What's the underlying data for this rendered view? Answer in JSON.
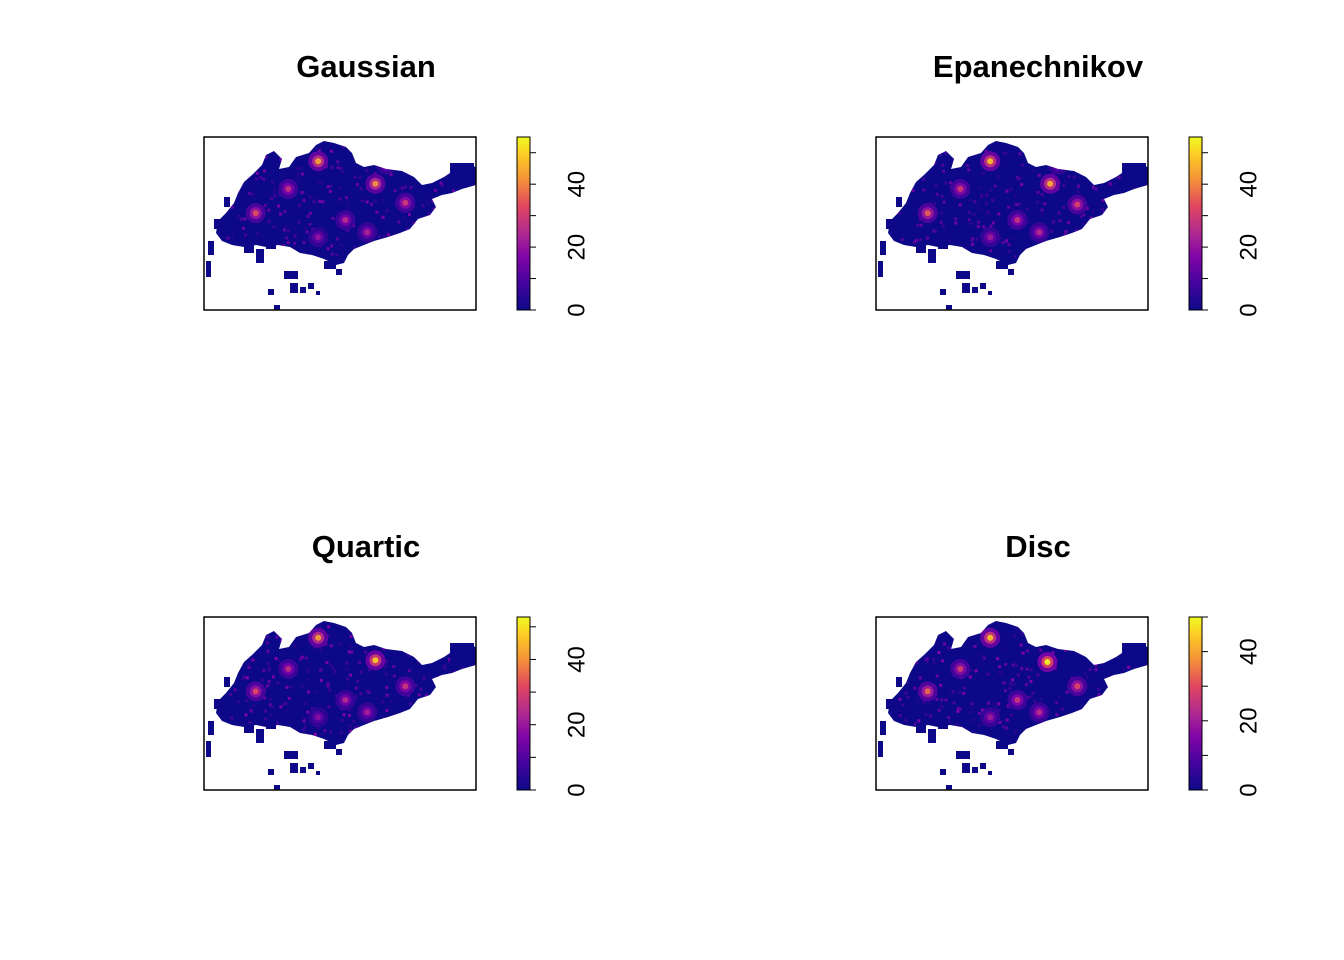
{
  "chart_data": [
    {
      "type": "heatmap",
      "title": "Gaussian",
      "colorbar": {
        "range": [
          0,
          55
        ],
        "ticks": [
          0,
          20,
          40
        ],
        "palette": "plasma",
        "position": "right"
      },
      "axes": "none",
      "grid": false,
      "hotspots": [
        {
          "x": 0.42,
          "y": 0.14,
          "value": 45
        },
        {
          "x": 0.63,
          "y": 0.27,
          "value": 42
        },
        {
          "x": 0.31,
          "y": 0.3,
          "value": 28
        },
        {
          "x": 0.19,
          "y": 0.44,
          "value": 34
        },
        {
          "x": 0.74,
          "y": 0.38,
          "value": 30
        },
        {
          "x": 0.52,
          "y": 0.48,
          "value": 26
        },
        {
          "x": 0.6,
          "y": 0.55,
          "value": 24
        },
        {
          "x": 0.42,
          "y": 0.58,
          "value": 20
        },
        {
          "x": 0.67,
          "y": 0.16,
          "value": 22
        }
      ]
    },
    {
      "type": "heatmap",
      "title": "Epanechnikov",
      "colorbar": {
        "range": [
          0,
          55
        ],
        "ticks": [
          0,
          20,
          40
        ],
        "palette": "plasma",
        "position": "right"
      },
      "axes": "none",
      "grid": false,
      "hotspots": [
        {
          "x": 0.42,
          "y": 0.14,
          "value": 48
        },
        {
          "x": 0.64,
          "y": 0.27,
          "value": 46
        },
        {
          "x": 0.31,
          "y": 0.3,
          "value": 30
        },
        {
          "x": 0.19,
          "y": 0.44,
          "value": 36
        },
        {
          "x": 0.74,
          "y": 0.39,
          "value": 32
        },
        {
          "x": 0.52,
          "y": 0.48,
          "value": 28
        },
        {
          "x": 0.6,
          "y": 0.55,
          "value": 26
        },
        {
          "x": 0.42,
          "y": 0.58,
          "value": 22
        },
        {
          "x": 0.67,
          "y": 0.16,
          "value": 24
        }
      ]
    },
    {
      "type": "heatmap",
      "title": "Quartic",
      "colorbar": {
        "range": [
          0,
          53
        ],
        "ticks": [
          0,
          20,
          40
        ],
        "palette": "plasma",
        "position": "right"
      },
      "axes": "none",
      "grid": false,
      "hotspots": [
        {
          "x": 0.42,
          "y": 0.12,
          "value": 42
        },
        {
          "x": 0.63,
          "y": 0.25,
          "value": 48
        },
        {
          "x": 0.31,
          "y": 0.3,
          "value": 26
        },
        {
          "x": 0.19,
          "y": 0.43,
          "value": 32
        },
        {
          "x": 0.74,
          "y": 0.4,
          "value": 28
        },
        {
          "x": 0.52,
          "y": 0.48,
          "value": 24
        },
        {
          "x": 0.6,
          "y": 0.55,
          "value": 22
        },
        {
          "x": 0.42,
          "y": 0.58,
          "value": 18
        }
      ]
    },
    {
      "type": "heatmap",
      "title": "Disc",
      "colorbar": {
        "range": [
          0,
          50
        ],
        "ticks": [
          0,
          20,
          40
        ],
        "palette": "plasma",
        "position": "right"
      },
      "axes": "none",
      "grid": false,
      "hotspots": [
        {
          "x": 0.42,
          "y": 0.12,
          "value": 44
        },
        {
          "x": 0.63,
          "y": 0.26,
          "value": 50
        },
        {
          "x": 0.31,
          "y": 0.3,
          "value": 28
        },
        {
          "x": 0.19,
          "y": 0.43,
          "value": 34
        },
        {
          "x": 0.74,
          "y": 0.4,
          "value": 30
        },
        {
          "x": 0.52,
          "y": 0.48,
          "value": 26
        },
        {
          "x": 0.6,
          "y": 0.55,
          "value": 24
        },
        {
          "x": 0.42,
          "y": 0.58,
          "value": 20
        }
      ]
    }
  ],
  "colors": {
    "low": "#0d0887",
    "mid_low": "#7e03a8",
    "mid": "#cc4778",
    "mid_high": "#f89540",
    "high": "#f0f921",
    "frame": "#000000",
    "background": "#ffffff"
  }
}
